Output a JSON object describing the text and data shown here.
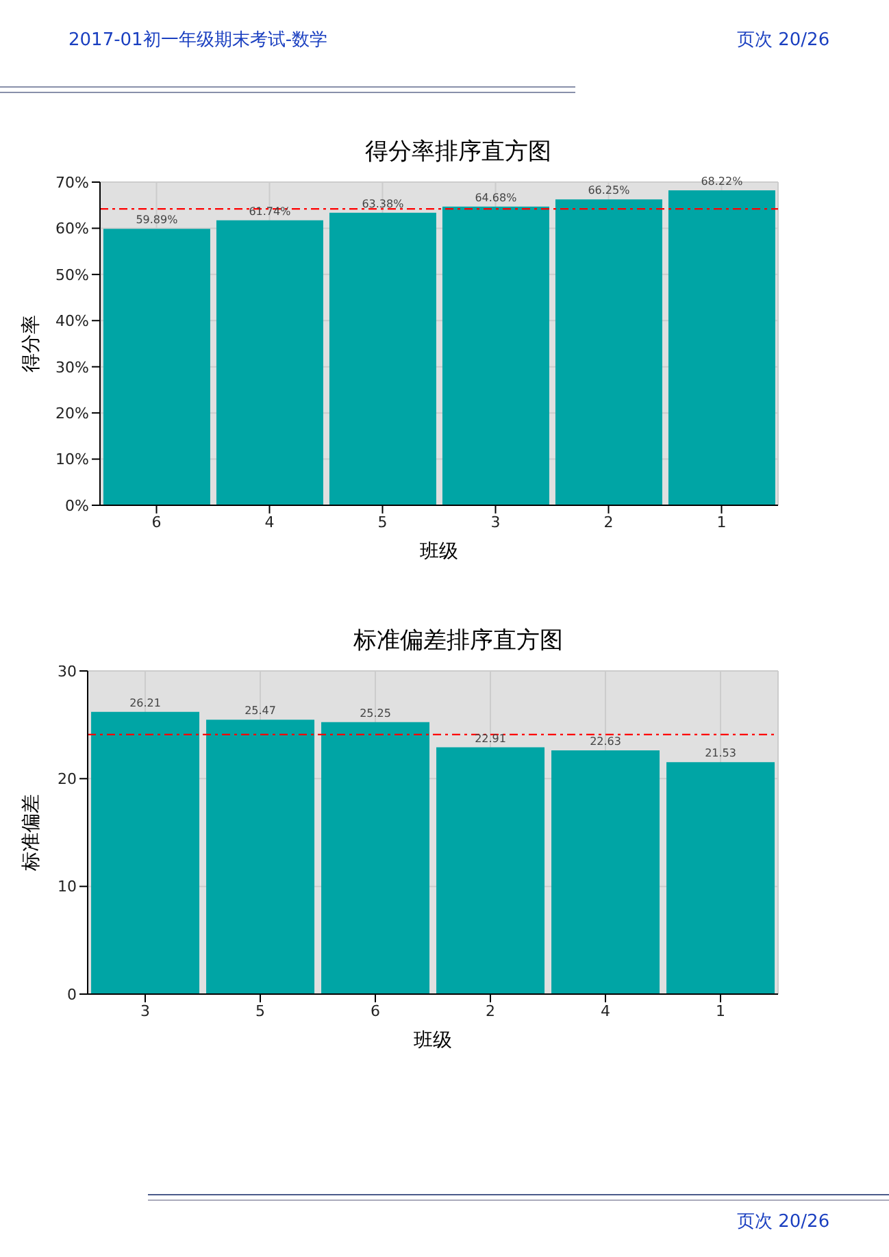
{
  "chart_data": [
    {
      "type": "bar",
      "title": "得分率排序直方图",
      "xlabel": "班级",
      "ylabel": "得分率",
      "categories": [
        "6",
        "4",
        "5",
        "3",
        "2",
        "1"
      ],
      "values": [
        59.89,
        61.74,
        63.38,
        64.68,
        66.25,
        68.22
      ],
      "value_labels": [
        "59.89%",
        "61.74%",
        "63.38%",
        "64.68%",
        "66.25%",
        "68.22%"
      ],
      "color": "#00a5a5",
      "ylim": [
        0,
        70
      ],
      "yticks": [
        {
          "value": 0,
          "label": "0%"
        },
        {
          "value": 10,
          "label": "10%"
        },
        {
          "value": 20,
          "label": "20%"
        },
        {
          "value": 30,
          "label": "30%"
        },
        {
          "value": 40,
          "label": "40%"
        },
        {
          "value": 50,
          "label": "50%"
        },
        {
          "value": 60,
          "label": "60%"
        },
        {
          "value": 70,
          "label": "70%"
        }
      ],
      "grid": true,
      "ref_lines": [
        {
          "axis": "y",
          "value": 64.2,
          "color": "#ff0000",
          "line_style": "dashed"
        }
      ],
      "annotations": [
        "2017-01初一年级期末考试-数学",
        "页次 20/26"
      ]
    },
    {
      "type": "bar",
      "title": "标准偏差排序直方图",
      "xlabel": "班级",
      "ylabel": "标准偏差",
      "categories": [
        "3",
        "5",
        "6",
        "2",
        "4",
        "1"
      ],
      "values": [
        26.21,
        25.47,
        25.25,
        22.91,
        22.63,
        21.53
      ],
      "data_labels": true,
      "color": "#00a5a5",
      "ylim": [
        0,
        30
      ],
      "yticks": [
        0,
        10,
        20,
        30
      ],
      "grid": true,
      "ref_lines": [
        {
          "axis": "y",
          "value": 24.1,
          "color": "#ff0000",
          "line_style": "dashed"
        }
      ],
      "annotations": [
        "页次 20/26"
      ]
    }
  ]
}
